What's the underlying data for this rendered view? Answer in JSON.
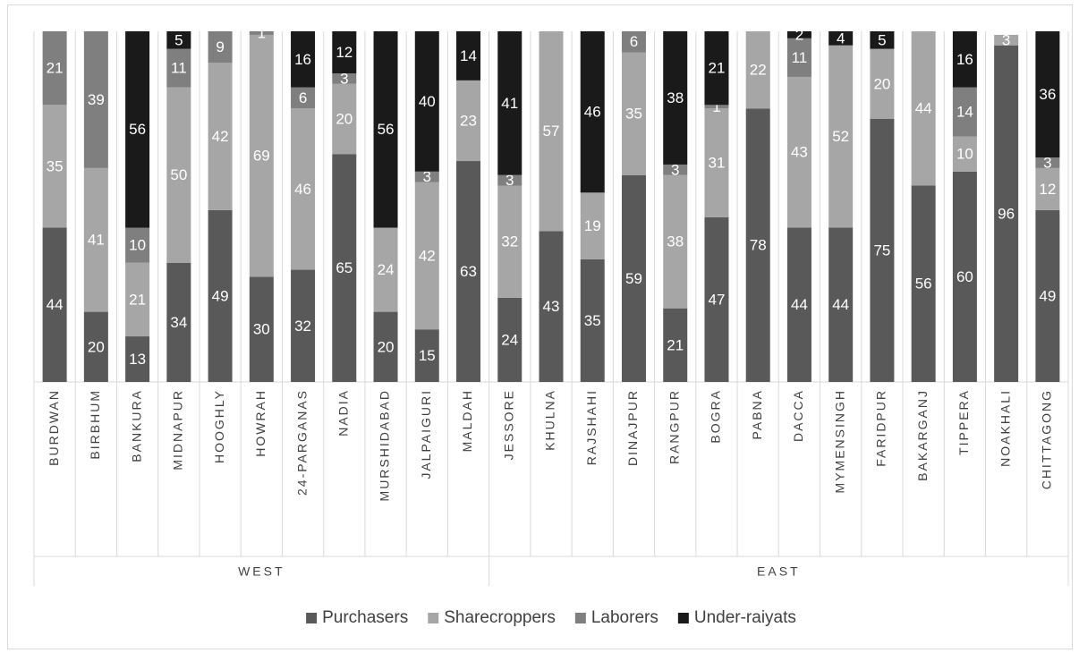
{
  "chart_data": {
    "type": "stacked-bar",
    "groups": [
      {
        "name": "WEST",
        "categories": [
          "BURDWAN",
          "BIRBHUM",
          "BANKURA",
          "MIDNAPUR",
          "HOOGHLY",
          "HOWRAH",
          "24-PARGANAS",
          "NADIA",
          "MURSHIDABAD",
          "JALPAIGURI",
          "MALDAH"
        ]
      },
      {
        "name": "EAST",
        "categories": [
          "JESSORE",
          "KHULNA",
          "RAJSHAHI",
          "DINAJPUR",
          "RANGPUR",
          "BOGRA",
          "PABNA",
          "DACCA",
          "MYMENSINGH",
          "FARIDPUR",
          "BAKARGANJ",
          "TIPPERA",
          "NOAKHALI",
          "CHITTAGONG"
        ]
      }
    ],
    "series": [
      {
        "name": "Purchasers",
        "color": "#595959",
        "values": [
          44,
          20,
          13,
          34,
          49,
          30,
          32,
          65,
          20,
          15,
          63,
          24,
          43,
          35,
          59,
          21,
          47,
          78,
          44,
          44,
          75,
          56,
          60,
          96,
          49
        ]
      },
      {
        "name": "Sharecroppers",
        "color": "#a6a6a6",
        "values": [
          35,
          41,
          21,
          50,
          42,
          69,
          46,
          20,
          24,
          42,
          23,
          32,
          57,
          19,
          35,
          38,
          31,
          22,
          43,
          52,
          20,
          44,
          10,
          3,
          12
        ]
      },
      {
        "name": "Laborers",
        "color": "#7f7f7f",
        "values": [
          21,
          39,
          10,
          11,
          9,
          1,
          6,
          3,
          0,
          3,
          0,
          3,
          0,
          0,
          6,
          3,
          1,
          0,
          11,
          0,
          0,
          0,
          14,
          0,
          3
        ]
      },
      {
        "name": "Under-raiyats",
        "color": "#1a1a1a",
        "values": [
          0,
          0,
          56,
          5,
          0,
          0,
          16,
          12,
          56,
          40,
          14,
          41,
          0,
          46,
          0,
          38,
          21,
          0,
          2,
          4,
          5,
          0,
          16,
          0,
          36
        ]
      }
    ],
    "ylim": [
      0,
      100
    ]
  }
}
